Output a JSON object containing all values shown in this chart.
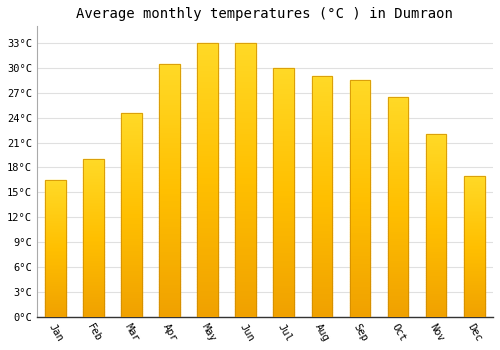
{
  "title": "Average monthly temperatures (°C ) in Dumraon",
  "months": [
    "Jan",
    "Feb",
    "Mar",
    "Apr",
    "May",
    "Jun",
    "Jul",
    "Aug",
    "Sep",
    "Oct",
    "Nov",
    "Dec"
  ],
  "values": [
    16.5,
    19.0,
    24.5,
    30.5,
    33.0,
    33.0,
    30.0,
    29.0,
    28.5,
    26.5,
    22.0,
    17.0
  ],
  "bar_color_dark": "#F0A000",
  "bar_color_light": "#FFD050",
  "ylim": [
    0,
    35
  ],
  "yticks": [
    0,
    3,
    6,
    9,
    12,
    15,
    18,
    21,
    24,
    27,
    30,
    33
  ],
  "ytick_labels": [
    "0°C",
    "3°C",
    "6°C",
    "9°C",
    "12°C",
    "15°C",
    "18°C",
    "21°C",
    "24°C",
    "27°C",
    "30°C",
    "33°C"
  ],
  "background_color": "#ffffff",
  "grid_color": "#e0e0e0",
  "title_fontsize": 10,
  "tick_fontsize": 7.5,
  "font_family": "monospace",
  "bar_width": 0.55
}
